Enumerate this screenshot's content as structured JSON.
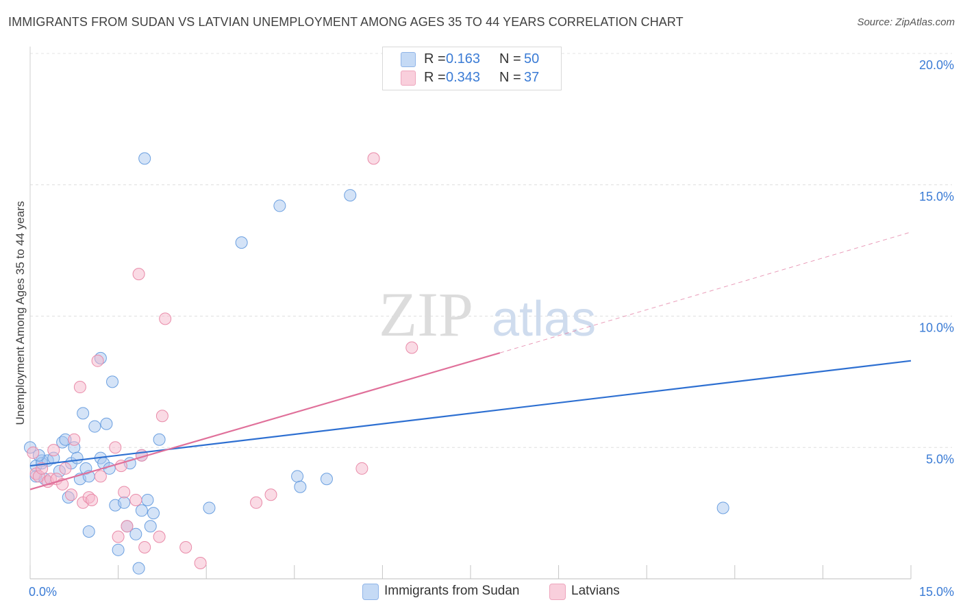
{
  "title": "IMMIGRANTS FROM SUDAN VS LATVIAN UNEMPLOYMENT AMONG AGES 35 TO 44 YEARS CORRELATION CHART",
  "source": "Source: ZipAtlas.com",
  "watermark": {
    "zip": "ZIP",
    "atlas": "atlas"
  },
  "legend": {
    "rows": [
      {
        "r_label": "R =",
        "r_value": "0.163",
        "n_label": "N =",
        "n_value": "50",
        "color": "#a9c8f0"
      },
      {
        "r_label": "R =",
        "r_value": "0.343",
        "n_label": "N =",
        "n_value": "37",
        "color": "#f5b8cc"
      }
    ]
  },
  "chart_data": {
    "type": "scatter",
    "title": "IMMIGRANTS FROM SUDAN VS LATVIAN UNEMPLOYMENT AMONG AGES 35 TO 44 YEARS CORRELATION CHART",
    "xlabel": "",
    "ylabel": "Unemployment Among Ages 35 to 44 years",
    "xlim": [
      0,
      15
    ],
    "ylim": [
      0,
      20
    ],
    "x_tick_labels": [
      {
        "value": 0,
        "label": "0.0%"
      },
      {
        "value": 15,
        "label": "15.0%"
      }
    ],
    "y_tick_labels": [
      {
        "value": 5,
        "label": "5.0%"
      },
      {
        "value": 10,
        "label": "10.0%"
      },
      {
        "value": 15,
        "label": "15.0%"
      },
      {
        "value": 20,
        "label": "20.0%"
      }
    ],
    "grid": true,
    "legend_position": "top-center",
    "series": [
      {
        "name": "Immigrants from Sudan",
        "color": "#a9c8f0",
        "stroke": "#6a9fe0",
        "trend_color": "#2d6fd1",
        "trend": {
          "x": [
            0,
            15
          ],
          "y": [
            4.3,
            8.3
          ]
        },
        "points": [
          [
            0.0,
            5.0
          ],
          [
            0.1,
            4.3
          ],
          [
            0.1,
            3.9
          ],
          [
            0.2,
            4.5
          ],
          [
            0.2,
            4.4
          ],
          [
            0.25,
            3.8
          ],
          [
            0.3,
            4.5
          ],
          [
            0.4,
            4.6
          ],
          [
            0.5,
            4.1
          ],
          [
            0.55,
            5.2
          ],
          [
            0.6,
            5.3
          ],
          [
            0.65,
            3.1
          ],
          [
            0.7,
            4.4
          ],
          [
            0.75,
            5.0
          ],
          [
            0.8,
            4.6
          ],
          [
            0.85,
            3.8
          ],
          [
            0.9,
            6.3
          ],
          [
            0.95,
            4.2
          ],
          [
            1.0,
            1.8
          ],
          [
            1.0,
            3.9
          ],
          [
            1.1,
            5.8
          ],
          [
            1.2,
            4.6
          ],
          [
            1.2,
            8.4
          ],
          [
            1.25,
            4.4
          ],
          [
            1.3,
            5.9
          ],
          [
            1.35,
            4.2
          ],
          [
            1.4,
            7.5
          ],
          [
            1.45,
            2.8
          ],
          [
            1.5,
            1.1
          ],
          [
            1.6,
            2.9
          ],
          [
            1.65,
            2.0
          ],
          [
            1.7,
            4.4
          ],
          [
            1.8,
            1.7
          ],
          [
            1.85,
            0.4
          ],
          [
            1.9,
            4.7
          ],
          [
            1.9,
            2.6
          ],
          [
            1.95,
            16.0
          ],
          [
            2.0,
            3.0
          ],
          [
            2.05,
            2.0
          ],
          [
            2.1,
            2.5
          ],
          [
            2.2,
            5.3
          ],
          [
            3.05,
            2.7
          ],
          [
            3.6,
            12.8
          ],
          [
            4.25,
            14.2
          ],
          [
            4.55,
            3.9
          ],
          [
            4.6,
            3.5
          ],
          [
            5.05,
            3.8
          ],
          [
            5.45,
            14.6
          ],
          [
            11.8,
            2.7
          ],
          [
            0.15,
            4.7
          ]
        ]
      },
      {
        "name": "Latvians",
        "color": "#f5b8cc",
        "stroke": "#e98aa8",
        "trend_color": "#e0709a",
        "trend": {
          "x": [
            0,
            8.0
          ],
          "y": [
            3.4,
            8.6
          ]
        },
        "trend_ext": {
          "x": [
            8.0,
            15
          ],
          "y": [
            8.6,
            13.2
          ]
        },
        "points": [
          [
            0.05,
            4.8
          ],
          [
            0.1,
            4.0
          ],
          [
            0.15,
            3.9
          ],
          [
            0.2,
            4.2
          ],
          [
            0.3,
            3.7
          ],
          [
            0.35,
            3.8
          ],
          [
            0.4,
            4.9
          ],
          [
            0.45,
            3.8
          ],
          [
            0.55,
            3.6
          ],
          [
            0.6,
            4.2
          ],
          [
            0.7,
            3.2
          ],
          [
            0.75,
            5.3
          ],
          [
            0.85,
            7.3
          ],
          [
            0.9,
            2.9
          ],
          [
            1.0,
            3.1
          ],
          [
            1.05,
            3.0
          ],
          [
            1.15,
            8.3
          ],
          [
            1.2,
            3.9
          ],
          [
            1.45,
            5.0
          ],
          [
            1.5,
            1.6
          ],
          [
            1.55,
            4.3
          ],
          [
            1.6,
            3.3
          ],
          [
            1.65,
            2.0
          ],
          [
            1.8,
            3.0
          ],
          [
            1.85,
            11.6
          ],
          [
            1.9,
            4.7
          ],
          [
            1.95,
            1.2
          ],
          [
            2.2,
            1.6
          ],
          [
            2.25,
            6.2
          ],
          [
            2.3,
            9.9
          ],
          [
            2.65,
            1.2
          ],
          [
            2.9,
            0.6
          ],
          [
            3.85,
            2.9
          ],
          [
            4.1,
            3.2
          ],
          [
            5.65,
            4.2
          ],
          [
            5.85,
            16.0
          ],
          [
            6.5,
            8.8
          ]
        ]
      }
    ]
  },
  "bottom_legend": [
    {
      "label": "Immigrants from Sudan",
      "color": "#a9c8f0"
    },
    {
      "label": "Latvians",
      "color": "#f5b8cc"
    }
  ]
}
